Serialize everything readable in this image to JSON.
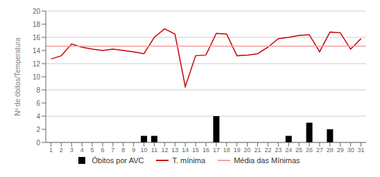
{
  "chart_data": {
    "type": "bar",
    "ylabel": "Nº de óbitos/Temperatura",
    "categories": [
      1,
      2,
      3,
      4,
      5,
      6,
      7,
      8,
      9,
      10,
      11,
      12,
      13,
      14,
      15,
      16,
      17,
      18,
      19,
      20,
      21,
      22,
      23,
      24,
      25,
      26,
      27,
      28,
      29,
      30,
      31
    ],
    "series": [
      {
        "name": "Óbitos por AVC",
        "type": "bar",
        "color": "#000000",
        "values": [
          0,
          0,
          0,
          0,
          0,
          0,
          0,
          0,
          0,
          1,
          1,
          0,
          0,
          0,
          0,
          0,
          4,
          0,
          0,
          0,
          0,
          0,
          0,
          1,
          0,
          3,
          0,
          2,
          0,
          0,
          0
        ]
      },
      {
        "name": "T. mínima",
        "type": "line",
        "color": "#cc0000",
        "values": [
          12.7,
          13.2,
          15.0,
          14.5,
          14.2,
          14.0,
          14.2,
          14.0,
          13.8,
          13.5,
          16.0,
          17.3,
          16.5,
          8.5,
          13.2,
          13.3,
          16.6,
          16.5,
          13.2,
          13.3,
          13.5,
          14.5,
          15.8,
          16.0,
          16.3,
          16.4,
          13.8,
          16.8,
          16.7,
          14.2,
          15.8
        ]
      }
    ],
    "reference_lines": [
      {
        "name": "Média das Mínimas",
        "value": 14.65,
        "color": "#f4a0a0"
      }
    ],
    "ylim": [
      0,
      20
    ],
    "yticks": [
      0,
      2,
      4,
      6,
      8,
      10,
      12,
      14,
      16,
      18,
      20
    ],
    "grid": true,
    "legend": "bottom"
  }
}
